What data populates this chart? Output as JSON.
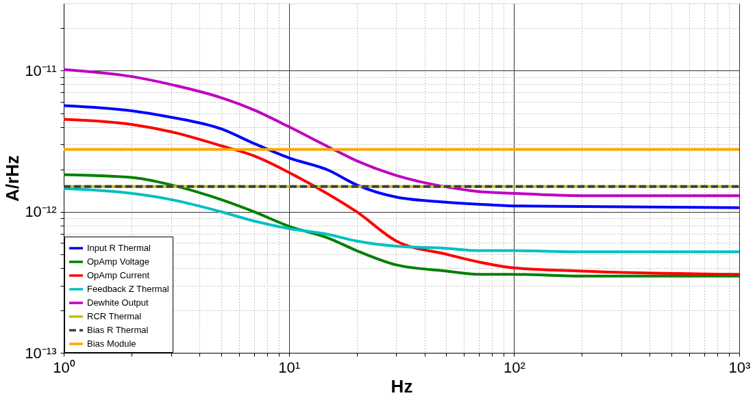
{
  "chart_data": {
    "type": "line",
    "xlabel": "Hz",
    "ylabel": "A/rHz",
    "log": "xy",
    "grid": true,
    "legend": "bottom left",
    "xlim": [
      1,
      1000
    ],
    "ylim": [
      1e-13,
      3e-11
    ],
    "xticks": [
      {
        "value": 1,
        "label": "10⁰"
      },
      {
        "value": 2,
        "label": null
      },
      {
        "value": 3,
        "label": null
      },
      {
        "value": 4,
        "label": null
      },
      {
        "value": 5,
        "label": null
      },
      {
        "value": 6,
        "label": null
      },
      {
        "value": 7,
        "label": null
      },
      {
        "value": 8,
        "label": null
      },
      {
        "value": 9,
        "label": null
      },
      {
        "value": 10,
        "label": "10¹"
      },
      {
        "value": 20,
        "label": null
      },
      {
        "value": 30,
        "label": null
      },
      {
        "value": 40,
        "label": null
      },
      {
        "value": 50,
        "label": null
      },
      {
        "value": 60,
        "label": null
      },
      {
        "value": 70,
        "label": null
      },
      {
        "value": 80,
        "label": null
      },
      {
        "value": 90,
        "label": null
      },
      {
        "value": 100,
        "label": "10²"
      },
      {
        "value": 200,
        "label": null
      },
      {
        "value": 300,
        "label": null
      },
      {
        "value": 400,
        "label": null
      },
      {
        "value": 500,
        "label": null
      },
      {
        "value": 600,
        "label": null
      },
      {
        "value": 700,
        "label": null
      },
      {
        "value": 800,
        "label": null
      },
      {
        "value": 900,
        "label": null
      },
      {
        "value": 1000,
        "label": "10³"
      }
    ],
    "yticks": [
      {
        "value": 1e-13,
        "label": "10⁻¹³"
      },
      {
        "value": 2e-13,
        "label": null
      },
      {
        "value": 3e-13,
        "label": null
      },
      {
        "value": 4e-13,
        "label": null
      },
      {
        "value": 5e-13,
        "label": null
      },
      {
        "value": 6e-13,
        "label": null
      },
      {
        "value": 7e-13,
        "label": null
      },
      {
        "value": 8e-13,
        "label": null
      },
      {
        "value": 9e-13,
        "label": null
      },
      {
        "value": 1e-12,
        "label": "10⁻¹²"
      },
      {
        "value": 2e-12,
        "label": null
      },
      {
        "value": 3e-12,
        "label": null
      },
      {
        "value": 4e-12,
        "label": null
      },
      {
        "value": 5e-12,
        "label": null
      },
      {
        "value": 6e-12,
        "label": null
      },
      {
        "value": 7e-12,
        "label": null
      },
      {
        "value": 8e-12,
        "label": null
      },
      {
        "value": 9e-12,
        "label": null
      },
      {
        "value": 1e-11,
        "label": "10⁻¹¹"
      },
      {
        "value": 2e-11,
        "label": null
      }
    ],
    "x": [
      1,
      2,
      3,
      5,
      7,
      10,
      15,
      20,
      30,
      50,
      70,
      100,
      200,
      1000
    ],
    "series": [
      {
        "name": "Input R Thermal",
        "color": "#0000ff",
        "values": [
          5.66e-12,
          5.2e-12,
          4.68e-12,
          3.87e-12,
          3.05e-12,
          2.41e-12,
          1.97e-12,
          1.55e-12,
          1.27e-12,
          1.17e-12,
          1.13e-12,
          1.1e-12,
          1.09e-12,
          1.07e-12
        ]
      },
      {
        "name": "OpAmp Voltage",
        "color": "#008000",
        "values": [
          1.83e-12,
          1.75e-12,
          1.55e-12,
          1.22e-12,
          1e-12,
          7.9e-13,
          6.5e-13,
          5.3e-13,
          4.2e-13,
          3.8e-13,
          3.6e-13,
          3.6e-13,
          3.5e-13,
          3.5e-13
        ]
      },
      {
        "name": "OpAmp Current",
        "color": "#ff0000",
        "values": [
          4.52e-12,
          4.16e-12,
          3.69e-12,
          2.94e-12,
          2.49e-12,
          1.9e-12,
          1.33e-12,
          1e-12,
          6.2e-13,
          5e-13,
          4.4e-13,
          4e-13,
          3.8e-13,
          3.6e-13
        ]
      },
      {
        "name": "Feedback Z Thermal",
        "color": "#00c0c0",
        "values": [
          1.46e-12,
          1.35e-12,
          1.22e-12,
          1e-12,
          8.6e-13,
          7.6e-13,
          6.9e-13,
          6.2e-13,
          5.7e-13,
          5.5e-13,
          5.3e-13,
          5.3e-13,
          5.2e-13,
          5.2e-13
        ]
      },
      {
        "name": "Dewhite Output",
        "color": "#c000c0",
        "values": [
          1.02e-11,
          9.1e-12,
          7.98e-12,
          6.44e-12,
          5.27e-12,
          4.01e-12,
          2.88e-12,
          2.3e-12,
          1.81e-12,
          1.5e-12,
          1.39e-12,
          1.35e-12,
          1.3e-12,
          1.3e-12
        ]
      },
      {
        "name": "RCR Thermal",
        "color": "#c0c000",
        "values": [
          1.51e-12,
          1.51e-12,
          1.51e-12,
          1.51e-12,
          1.51e-12,
          1.51e-12,
          1.51e-12,
          1.51e-12,
          1.51e-12,
          1.51e-12,
          1.51e-12,
          1.51e-12,
          1.51e-12,
          1.51e-12
        ]
      },
      {
        "name": "Bias R Thermal",
        "color": "#404040",
        "line_style": "dashed",
        "values": [
          1.51e-12,
          1.51e-12,
          1.51e-12,
          1.51e-12,
          1.51e-12,
          1.51e-12,
          1.51e-12,
          1.51e-12,
          1.51e-12,
          1.51e-12,
          1.51e-12,
          1.51e-12,
          1.51e-12,
          1.51e-12
        ]
      },
      {
        "name": "Bias Module",
        "color": "#ffa500",
        "values": [
          2.77e-12,
          2.77e-12,
          2.77e-12,
          2.77e-12,
          2.77e-12,
          2.77e-12,
          2.77e-12,
          2.77e-12,
          2.77e-12,
          2.77e-12,
          2.77e-12,
          2.77e-12,
          2.77e-12,
          2.77e-12
        ]
      }
    ]
  }
}
